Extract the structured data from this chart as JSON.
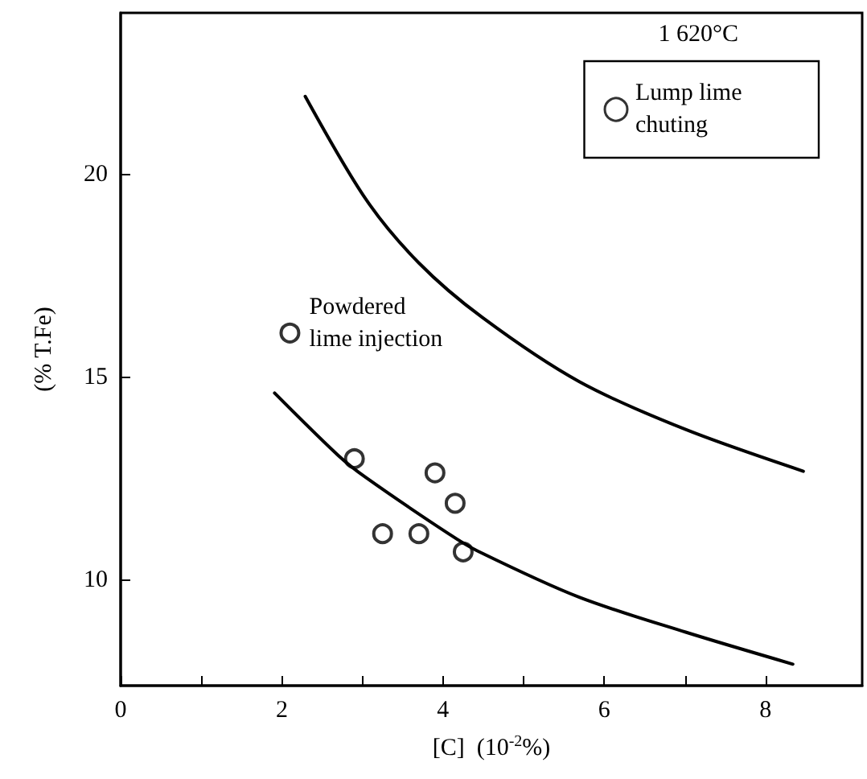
{
  "chart_data": {
    "type": "scatter",
    "xlabel": "[C]  (10$^{-2}$%)",
    "ylabel": "(% T.Fe)",
    "legend_title": "1 620°C",
    "xlim": [
      0,
      9.2
    ],
    "ylim": [
      7.4,
      24
    ],
    "xticks": [
      0,
      {
        "value": 1,
        "label": null
      },
      2,
      {
        "value": 3,
        "label": null
      },
      4,
      {
        "value": 5,
        "label": null
      },
      6,
      {
        "value": 7,
        "label": null
      },
      8
    ],
    "yticks": [
      10,
      15,
      20
    ],
    "grid": false,
    "legend": "top right",
    "series": [
      {
        "name": "Lump lime chuting",
        "marker": "circle",
        "color": "#000000",
        "x": [
          2.9,
          3.9,
          4.15,
          3.25,
          3.7,
          4.25
        ],
        "values": [
          13.0,
          12.65,
          11.9,
          11.15,
          11.15,
          10.7
        ]
      },
      {
        "marker": "circle",
        "color": "#000000",
        "x": [
          2.1
        ],
        "values": [
          16.1
        ]
      },
      {
        "type": "line",
        "marker": "none",
        "line_style": "solid",
        "color": "#000000",
        "x": [
          2.29,
          3.04,
          3.7,
          4.49,
          5.69,
          7.01,
          8.47
        ],
        "values": [
          21.94,
          19.41,
          17.83,
          16.48,
          14.9,
          13.72,
          12.69
        ]
      },
      {
        "type": "line",
        "marker": "none",
        "line_style": "solid",
        "color": "#000000",
        "x": [
          1.91,
          2.7,
          3.04,
          4.06,
          4.43,
          5.69,
          7.01,
          8.34
        ],
        "values": [
          14.62,
          13.08,
          12.54,
          11.16,
          10.72,
          9.58,
          8.72,
          7.93
        ]
      }
    ],
    "annotations": [
      {
        "text": "Powdered\nlime injection",
        "x": 2.1,
        "y": 16.1
      }
    ]
  }
}
